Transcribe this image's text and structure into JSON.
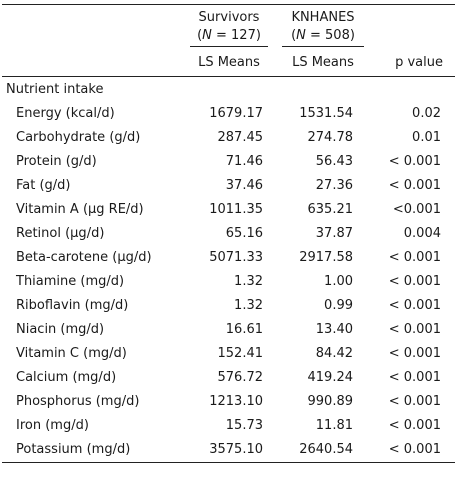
{
  "header": {
    "survivors": {
      "name": "Survivors",
      "n_prefix": "(",
      "n_var": "N",
      "n_eq": " = 127)"
    },
    "knhanes": {
      "name": "KNHANES",
      "n_prefix": "(",
      "n_var": "N",
      "n_eq": " = 508)"
    },
    "sub": {
      "survivors": "LS Means",
      "knhanes": "LS Means",
      "p_value": "p value"
    }
  },
  "section_label": "Nutrient intake",
  "rows": [
    {
      "nutrient": "Energy (kcal/d)",
      "survivors": "1679.17",
      "knhanes": "1531.54",
      "p": "0.02"
    },
    {
      "nutrient": "Carbohydrate (g/d)",
      "survivors": "287.45",
      "knhanes": "274.78",
      "p": "0.01"
    },
    {
      "nutrient": "Protein (g/d)",
      "survivors": "71.46",
      "knhanes": "56.43",
      "p": "< 0.001"
    },
    {
      "nutrient": "Fat (g/d)",
      "survivors": "37.46",
      "knhanes": "27.36",
      "p": "< 0.001"
    },
    {
      "nutrient": "Vitamin A (μg RE/d)",
      "survivors": "1011.35",
      "knhanes": "635.21",
      "p": "<0.001"
    },
    {
      "nutrient": "Retinol (μg/d)",
      "survivors": "65.16",
      "knhanes": "37.87",
      "p": "0.004"
    },
    {
      "nutrient": "Beta-carotene (μg/d)",
      "survivors": "5071.33",
      "knhanes": "2917.58",
      "p": "< 0.001"
    },
    {
      "nutrient": "Thiamine (mg/d)",
      "survivors": "1.32",
      "knhanes": "1.00",
      "p": "< 0.001"
    },
    {
      "nutrient": "Riboflavin (mg/d)",
      "survivors": "1.32",
      "knhanes": "0.99",
      "p": "< 0.001"
    },
    {
      "nutrient": "Niacin (mg/d)",
      "survivors": "16.61",
      "knhanes": "13.40",
      "p": "< 0.001"
    },
    {
      "nutrient": "Vitamin C (mg/d)",
      "survivors": "152.41",
      "knhanes": "84.42",
      "p": "< 0.001"
    },
    {
      "nutrient": "Calcium (mg/d)",
      "survivors": "576.72",
      "knhanes": "419.24",
      "p": "< 0.001"
    },
    {
      "nutrient": "Phosphorus (mg/d)",
      "survivors": "1213.10",
      "knhanes": "990.89",
      "p": "< 0.001"
    },
    {
      "nutrient": "Iron (mg/d)",
      "survivors": "15.73",
      "knhanes": "11.81",
      "p": "< 0.001"
    },
    {
      "nutrient": "Potassium (mg/d)",
      "survivors": "3575.10",
      "knhanes": "2640.54",
      "p": "< 0.001"
    }
  ]
}
